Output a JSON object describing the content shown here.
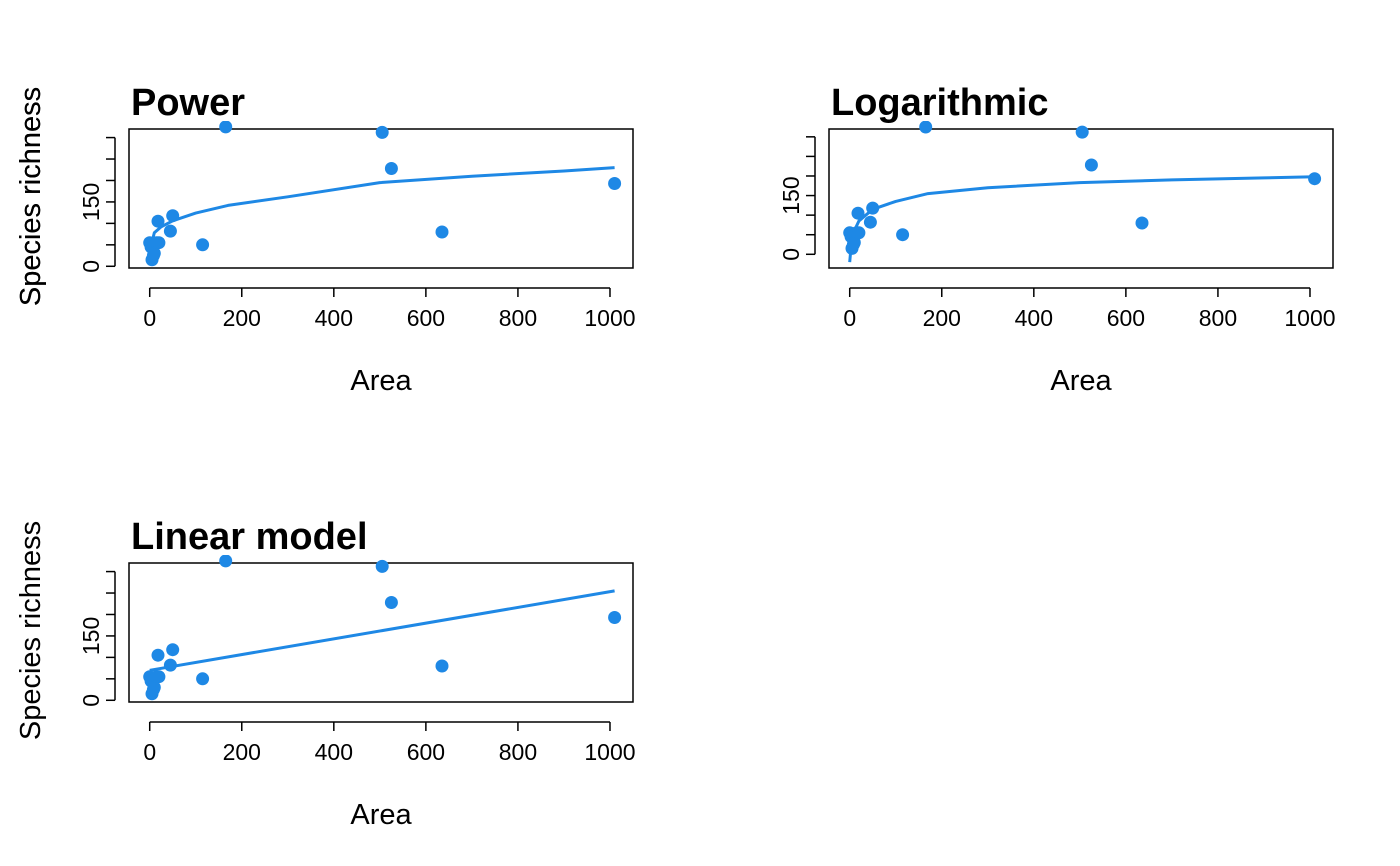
{
  "colors": {
    "accent": "#1e88e5",
    "axis": "#000000",
    "background": "#ffffff"
  },
  "chart_data": [
    {
      "type": "scatter",
      "title": "Power",
      "xlabel": "Area",
      "ylabel": "Species richness",
      "xlim": [
        -45,
        1050
      ],
      "ylim": [
        -4,
        320
      ],
      "xticks": [
        0,
        200,
        400,
        600,
        800,
        1000
      ],
      "yticks": [
        0,
        50,
        100,
        150,
        200,
        250,
        300
      ],
      "ytick_labels": [
        {
          "value": 0,
          "label": "0"
        },
        {
          "value": 150,
          "label": "150"
        }
      ],
      "points": [
        [
          0,
          55
        ],
        [
          3,
          45
        ],
        [
          5,
          15
        ],
        [
          8,
          25
        ],
        [
          10,
          30
        ],
        [
          15,
          55
        ],
        [
          18,
          105
        ],
        [
          20,
          55
        ],
        [
          45,
          82
        ],
        [
          50,
          118
        ],
        [
          115,
          50
        ],
        [
          165,
          325
        ],
        [
          505,
          312
        ],
        [
          525,
          228
        ],
        [
          635,
          80
        ],
        [
          1010,
          193
        ]
      ],
      "fit": [
        [
          0,
          35
        ],
        [
          10,
          78
        ],
        [
          25,
          92
        ],
        [
          50,
          106
        ],
        [
          100,
          124
        ],
        [
          170,
          142
        ],
        [
          300,
          162
        ],
        [
          500,
          195
        ],
        [
          700,
          210
        ],
        [
          900,
          222
        ],
        [
          1010,
          230
        ]
      ]
    },
    {
      "type": "scatter",
      "title": "Logarithmic",
      "xlabel": "Area",
      "ylabel": "Species richness",
      "xlim": [
        -45,
        1050
      ],
      "ylim": [
        -35,
        320
      ],
      "xticks": [
        0,
        200,
        400,
        600,
        800,
        1000
      ],
      "yticks": [
        0,
        50,
        100,
        150,
        200,
        250,
        300
      ],
      "ytick_labels": [
        {
          "value": 0,
          "label": "0"
        },
        {
          "value": 150,
          "label": "150"
        }
      ],
      "points": [
        [
          0,
          55
        ],
        [
          3,
          45
        ],
        [
          5,
          15
        ],
        [
          8,
          25
        ],
        [
          10,
          30
        ],
        [
          15,
          55
        ],
        [
          18,
          105
        ],
        [
          20,
          55
        ],
        [
          45,
          82
        ],
        [
          50,
          118
        ],
        [
          115,
          50
        ],
        [
          165,
          325
        ],
        [
          505,
          312
        ],
        [
          525,
          228
        ],
        [
          635,
          80
        ],
        [
          1010,
          193
        ]
      ],
      "fit": [
        [
          0,
          -20
        ],
        [
          3,
          20
        ],
        [
          10,
          60
        ],
        [
          20,
          85
        ],
        [
          50,
          115
        ],
        [
          100,
          135
        ],
        [
          170,
          155
        ],
        [
          300,
          170
        ],
        [
          500,
          183
        ],
        [
          700,
          190
        ],
        [
          900,
          195
        ],
        [
          1010,
          198
        ]
      ]
    },
    {
      "type": "scatter",
      "title": "Linear model",
      "xlabel": "Area",
      "ylabel": "Species richness",
      "xlim": [
        -45,
        1050
      ],
      "ylim": [
        -4,
        320
      ],
      "xticks": [
        0,
        200,
        400,
        600,
        800,
        1000
      ],
      "yticks": [
        0,
        50,
        100,
        150,
        200,
        250,
        300
      ],
      "ytick_labels": [
        {
          "value": 0,
          "label": "0"
        },
        {
          "value": 150,
          "label": "150"
        }
      ],
      "points": [
        [
          0,
          55
        ],
        [
          3,
          45
        ],
        [
          5,
          15
        ],
        [
          8,
          25
        ],
        [
          10,
          30
        ],
        [
          15,
          55
        ],
        [
          18,
          105
        ],
        [
          20,
          55
        ],
        [
          45,
          82
        ],
        [
          50,
          118
        ],
        [
          115,
          50
        ],
        [
          165,
          325
        ],
        [
          505,
          312
        ],
        [
          525,
          228
        ],
        [
          635,
          80
        ],
        [
          1010,
          193
        ]
      ],
      "fit": [
        [
          0,
          70
        ],
        [
          1010,
          255
        ]
      ]
    }
  ]
}
